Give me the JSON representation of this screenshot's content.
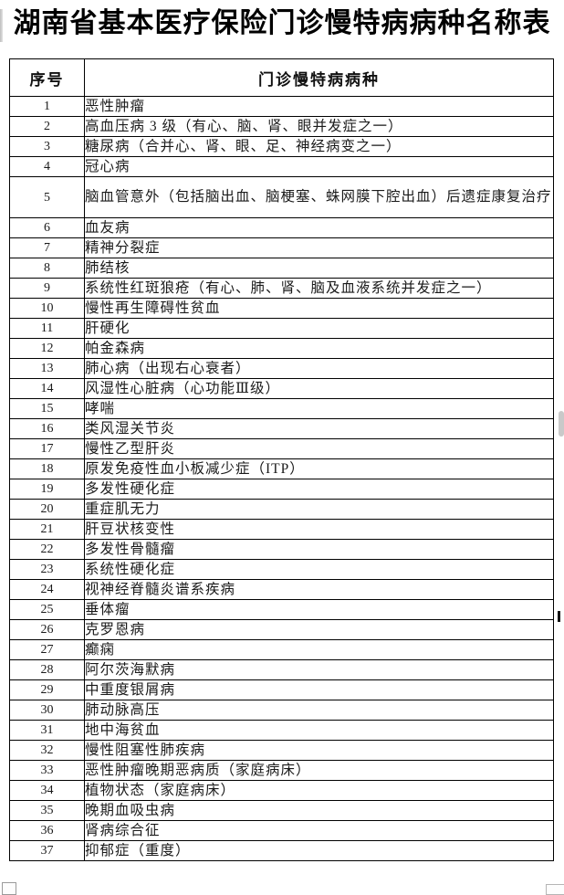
{
  "page": {
    "title": "湖南省基本医疗保险门诊慢特病病种名称表"
  },
  "table": {
    "columns": [
      "序号",
      "门诊慢特病病种"
    ],
    "rows": [
      {
        "no": "1",
        "name": "恶性肿瘤"
      },
      {
        "no": "2",
        "name": "高血压病 3 级（有心、脑、肾、眼并发症之一）"
      },
      {
        "no": "3",
        "name": "糖尿病（合并心、肾、眼、足、神经病变之一）"
      },
      {
        "no": "4",
        "name": "冠心病"
      },
      {
        "no": "5",
        "name": "脑血管意外（包括脑出血、脑梗塞、蛛网膜下腔出血）后遗症康复治疗"
      },
      {
        "no": "6",
        "name": "血友病"
      },
      {
        "no": "7",
        "name": "精神分裂症"
      },
      {
        "no": "8",
        "name": "肺结核"
      },
      {
        "no": "9",
        "name": "系统性红斑狼疮（有心、肺、肾、脑及血液系统并发症之一）"
      },
      {
        "no": "10",
        "name": "慢性再生障碍性贫血"
      },
      {
        "no": "11",
        "name": "肝硬化"
      },
      {
        "no": "12",
        "name": "帕金森病"
      },
      {
        "no": "13",
        "name": "肺心病（出现右心衰者）"
      },
      {
        "no": "14",
        "name": "风湿性心脏病（心功能Ⅲ级）"
      },
      {
        "no": "15",
        "name": "哮喘"
      },
      {
        "no": "16",
        "name": "类风湿关节炎"
      },
      {
        "no": "17",
        "name": "慢性乙型肝炎"
      },
      {
        "no": "18",
        "name": "原发免疫性血小板减少症（ITP）"
      },
      {
        "no": "19",
        "name": "多发性硬化症"
      },
      {
        "no": "20",
        "name": "重症肌无力"
      },
      {
        "no": "21",
        "name": "肝豆状核变性"
      },
      {
        "no": "22",
        "name": "多发性骨髓瘤"
      },
      {
        "no": "23",
        "name": "系统性硬化症"
      },
      {
        "no": "24",
        "name": "视神经脊髓炎谱系疾病"
      },
      {
        "no": "25",
        "name": "垂体瘤"
      },
      {
        "no": "26",
        "name": "克罗恩病"
      },
      {
        "no": "27",
        "name": "癫痫"
      },
      {
        "no": "28",
        "name": "阿尔茨海默病"
      },
      {
        "no": "29",
        "name": "中重度银屑病"
      },
      {
        "no": "30",
        "name": "肺动脉高压"
      },
      {
        "no": "31",
        "name": "地中海贫血"
      },
      {
        "no": "32",
        "name": "慢性阻塞性肺疾病"
      },
      {
        "no": "33",
        "name": "恶性肿瘤晚期恶病质（家庭病床）"
      },
      {
        "no": "34",
        "name": "植物状态（家庭病床）"
      },
      {
        "no": "35",
        "name": "晚期血吸虫病"
      },
      {
        "no": "36",
        "name": "肾病综合征"
      },
      {
        "no": "37",
        "name": "抑郁症（重度）"
      }
    ]
  }
}
